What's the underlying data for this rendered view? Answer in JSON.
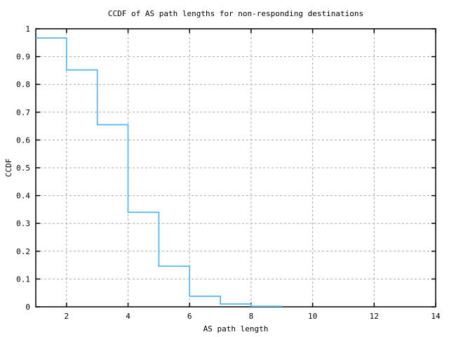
{
  "chart_data": {
    "type": "line",
    "style": "step",
    "title": "CCDF of AS path lengths for non-responding destinations",
    "xlabel": "AS path length",
    "ylabel": "CCDF",
    "xlim": [
      1,
      14
    ],
    "ylim": [
      0,
      1
    ],
    "x_ticks": [
      2,
      4,
      6,
      8,
      10,
      12,
      14
    ],
    "y_ticks": [
      0,
      0.1,
      0.2,
      0.3,
      0.4,
      0.5,
      0.6,
      0.7,
      0.8,
      0.9,
      1
    ],
    "grid": true,
    "legend": "none",
    "background_color": "#ffffff",
    "grid_color": "#a6a6a6",
    "border_color": "#000000",
    "series": [
      {
        "name": "CCDF of AS path length",
        "color": "#56B4E9",
        "steps_x": [
          1,
          2,
          3,
          4,
          5,
          6,
          7,
          8,
          9
        ],
        "values": [
          0.967,
          0.852,
          0.655,
          0.34,
          0.146,
          0.038,
          0.01,
          0.002
        ]
      }
    ]
  }
}
